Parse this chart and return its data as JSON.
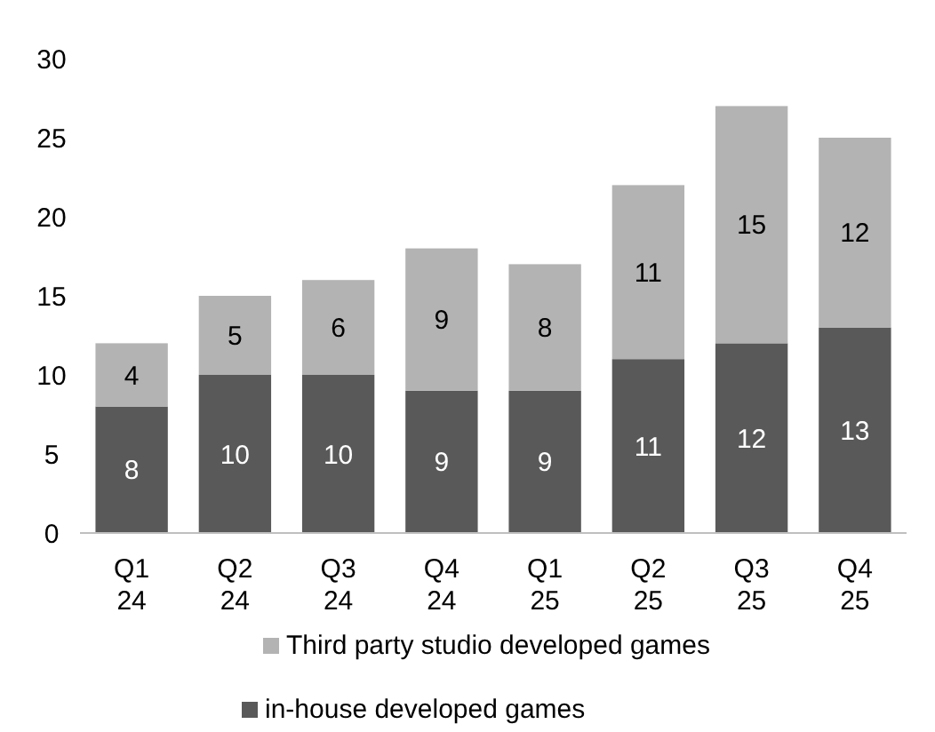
{
  "chart_data": {
    "type": "bar",
    "stacked": true,
    "categories": [
      "Q1\n24",
      "Q2\n24",
      "Q3\n24",
      "Q4\n24",
      "Q1\n25",
      "Q2\n25",
      "Q3\n25",
      "Q4\n25"
    ],
    "series": [
      {
        "name": "in-house developed games",
        "color": "#595959",
        "values": [
          8,
          10,
          10,
          9,
          9,
          11,
          12,
          13
        ]
      },
      {
        "name": "Third party studio developed games",
        "color": "#b3b3b3",
        "values": [
          4,
          5,
          6,
          9,
          8,
          11,
          15,
          12
        ]
      }
    ],
    "ylim": [
      0,
      30
    ],
    "yticks": [
      0,
      5,
      10,
      15,
      20,
      25,
      30
    ],
    "data_labels": true,
    "legend": "bottom",
    "grid": false
  }
}
